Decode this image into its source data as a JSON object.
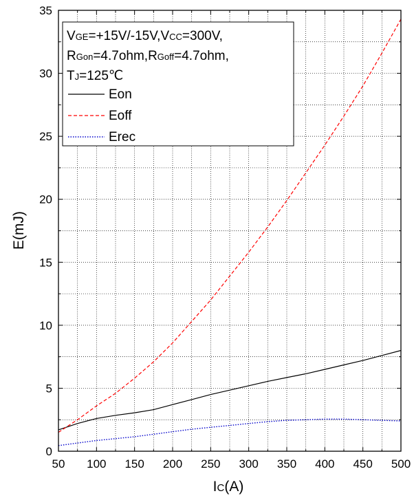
{
  "chart_data": {
    "type": "line",
    "xlabel_main": "I",
    "xlabel_sub": "C",
    "xlabel_unit": "(A)",
    "ylabel": "E(mJ)",
    "xlim": [
      50,
      500
    ],
    "ylim": [
      0,
      35
    ],
    "x_ticks": [
      50,
      100,
      150,
      200,
      250,
      300,
      350,
      400,
      450,
      500
    ],
    "y_ticks": [
      0,
      5,
      10,
      15,
      20,
      25,
      30,
      35
    ],
    "grid": true,
    "legend_position": "top-left",
    "conditions": {
      "line1": {
        "a_main": "V",
        "a_sub": "GE",
        "a_val": "=+15V/-15V,",
        "b_main": "V",
        "b_sub": "CC",
        "b_val": "=300V,"
      },
      "line2": {
        "a_main": "R",
        "a_sub": "Gon",
        "a_val": "=4.7ohm,",
        "b_main": "R",
        "b_sub": "Goff",
        "b_val": "=4.7ohm,"
      },
      "line3": {
        "a_main": "T",
        "a_sub": "J",
        "a_val": "=125℃"
      }
    },
    "series": [
      {
        "name": "Eon",
        "color": "#000000",
        "dash": "solid",
        "x": [
          50,
          75,
          100,
          125,
          150,
          175,
          200,
          225,
          250,
          275,
          300,
          325,
          350,
          375,
          400,
          425,
          450,
          475,
          500
        ],
        "y": [
          1.7,
          2.2,
          2.6,
          2.85,
          3.05,
          3.3,
          3.7,
          4.1,
          4.5,
          4.85,
          5.2,
          5.55,
          5.85,
          6.15,
          6.5,
          6.85,
          7.2,
          7.6,
          8.0
        ]
      },
      {
        "name": "Eoff",
        "color": "#ff0000",
        "dash": "dashed",
        "x": [
          50,
          75,
          100,
          125,
          150,
          175,
          200,
          225,
          250,
          275,
          300,
          325,
          350,
          375,
          400,
          425,
          450,
          475,
          500
        ],
        "y": [
          1.5,
          2.5,
          3.6,
          4.6,
          5.8,
          7.1,
          8.6,
          10.3,
          12.0,
          13.9,
          15.8,
          17.8,
          19.9,
          22.1,
          24.3,
          26.6,
          29.0,
          31.6,
          34.3
        ]
      },
      {
        "name": "Erec",
        "color": "#0000cc",
        "dash": "dotted",
        "x": [
          50,
          75,
          100,
          125,
          150,
          175,
          200,
          225,
          250,
          275,
          300,
          325,
          350,
          375,
          400,
          425,
          450,
          475,
          500
        ],
        "y": [
          0.45,
          0.65,
          0.85,
          1.0,
          1.15,
          1.35,
          1.55,
          1.75,
          1.9,
          2.05,
          2.2,
          2.35,
          2.45,
          2.5,
          2.55,
          2.55,
          2.5,
          2.45,
          2.4
        ]
      }
    ]
  }
}
